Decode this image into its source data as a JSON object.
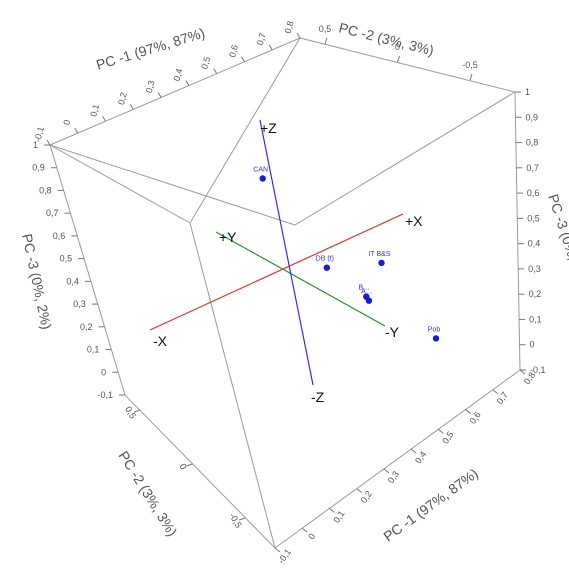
{
  "chart_data": {
    "type": "scatter",
    "projection": "3d",
    "axes": {
      "pc1": {
        "title": "PC -1 (97%, 87%)",
        "ticks": [
          "-0,1",
          "0",
          "0,1",
          "0,2",
          "0,3",
          "0,4",
          "0,5",
          "0,6",
          "0,7",
          "0,8"
        ]
      },
      "pc1_front": {
        "title": "PC -1 (97%, 87%)",
        "ticks": [
          "-0,1",
          "0",
          "0,1",
          "0,2",
          "0,3",
          "0,4",
          "0,5",
          "0,6",
          "0,7",
          "0,8"
        ]
      },
      "pc2": {
        "title": "PC -2 (3%, 3%)",
        "ticks": [
          "0,5",
          "0",
          "-0,5"
        ]
      },
      "pc2_front": {
        "title": "PC -2 (3%, 3%)",
        "ticks": [
          "0,5",
          "0",
          "-0,5"
        ]
      },
      "pc3": {
        "title": "PC -3 (0%, 2%)",
        "ticks": [
          "1",
          "0,9",
          "0,8",
          "0,7",
          "0,6",
          "0,5",
          "0,4",
          "0,3",
          "0,2",
          "0,1",
          "0",
          "-0,1"
        ]
      },
      "pc3_right": {
        "title": "PC -3 (0%, 2%)",
        "ticks": [
          "1",
          "0,9",
          "0,8",
          "0,7",
          "0,6",
          "0,5",
          "0,4",
          "0,3",
          "0,2",
          "0,1",
          "0",
          "-0,1"
        ]
      }
    },
    "directions": {
      "plus_x": "+X",
      "minus_x": "-X",
      "plus_y": "+Y",
      "minus_y": "-Y",
      "plus_z": "+Z",
      "minus_z": "-Z"
    },
    "points": [
      {
        "label": "CAN",
        "pc1": 0.28,
        "pc2": 0.0,
        "pc3": 0.92
      },
      {
        "label": "DB (t)",
        "pc1": 0.46,
        "pc2": -0.3,
        "pc3": 0.42
      },
      {
        "label": "IT B&S",
        "pc1": 0.36,
        "pc2": 0.35,
        "pc3": 0.2
      },
      {
        "label": "Pob",
        "pc1": 0.78,
        "pc2": -0.6,
        "pc3": 0.0
      },
      {
        "label": "B…",
        "pc1": 0.3,
        "pc2": 0.3,
        "pc3": 0.02
      },
      {
        "label": "A…",
        "pc1": 0.31,
        "pc2": 0.28,
        "pc3": 0.0
      }
    ],
    "colors": {
      "point": "#1a1ad6",
      "x_axis": "#e53030",
      "y_axis": "#2f8f2f",
      "z_axis": "#3030e0"
    }
  }
}
